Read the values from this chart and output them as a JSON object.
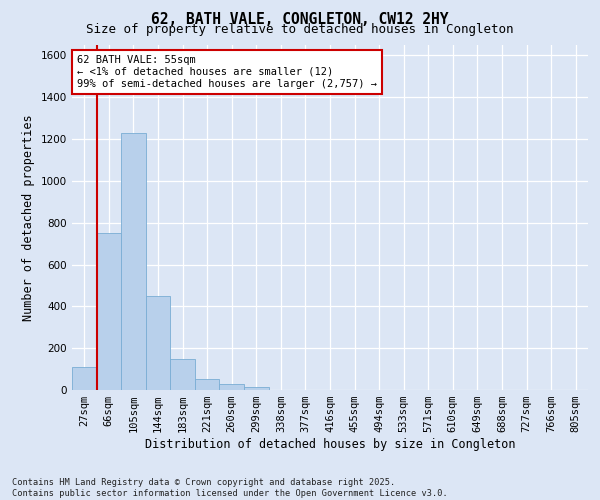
{
  "title": "62, BATH VALE, CONGLETON, CW12 2HY",
  "subtitle": "Size of property relative to detached houses in Congleton",
  "xlabel": "Distribution of detached houses by size in Congleton",
  "ylabel": "Number of detached properties",
  "categories": [
    "27sqm",
    "66sqm",
    "105sqm",
    "144sqm",
    "183sqm",
    "221sqm",
    "260sqm",
    "299sqm",
    "338sqm",
    "377sqm",
    "416sqm",
    "455sqm",
    "494sqm",
    "533sqm",
    "571sqm",
    "610sqm",
    "649sqm",
    "688sqm",
    "727sqm",
    "766sqm",
    "805sqm"
  ],
  "values": [
    110,
    750,
    1230,
    450,
    150,
    55,
    30,
    15,
    0,
    0,
    0,
    0,
    0,
    0,
    0,
    0,
    0,
    0,
    0,
    0,
    0
  ],
  "bar_color": "#b8d0eb",
  "bar_edge_color": "#7aadd4",
  "ylim": [
    0,
    1650
  ],
  "yticks": [
    0,
    200,
    400,
    600,
    800,
    1000,
    1200,
    1400,
    1600
  ],
  "marker_line_color": "#cc0000",
  "annotation_text": "62 BATH VALE: 55sqm\n← <1% of detached houses are smaller (12)\n99% of semi-detached houses are larger (2,757) →",
  "annotation_edge_color": "#cc0000",
  "bg_color": "#dce6f5",
  "footer_text": "Contains HM Land Registry data © Crown copyright and database right 2025.\nContains public sector information licensed under the Open Government Licence v3.0.",
  "title_fontsize": 10.5,
  "subtitle_fontsize": 9,
  "axis_label_fontsize": 8.5,
  "tick_fontsize": 7.5,
  "annotation_fontsize": 7.5
}
